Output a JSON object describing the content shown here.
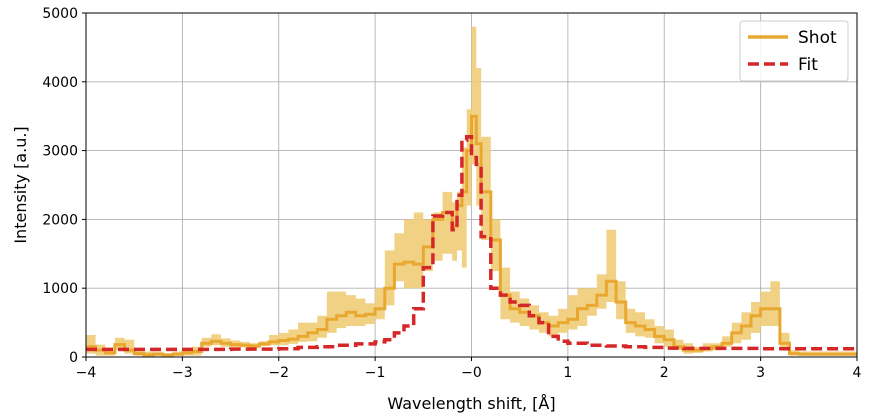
{
  "chart_data": {
    "type": "line",
    "title": "",
    "xlabel": "Wavelength shift, [Å]",
    "ylabel": "Intensity [a.u.]",
    "xlim": [
      -4,
      4
    ],
    "ylim": [
      0,
      5000
    ],
    "xticks": [
      -4,
      -3,
      -2,
      -1,
      0,
      1,
      2,
      3,
      4
    ],
    "xtick_labels": [
      "−4",
      "−3",
      "−2",
      "−1",
      "−0",
      "1",
      "2",
      "3",
      "4"
    ],
    "yticks": [
      0,
      1000,
      2000,
      3000,
      4000,
      5000
    ],
    "ytick_labels": [
      "0",
      "1000",
      "2000",
      "3000",
      "4000",
      "5000"
    ],
    "grid": true,
    "legend_position": "top-right",
    "series": [
      {
        "name": "Shot",
        "color": "#e8a830",
        "style": "solid step",
        "band_color": "#efcd78",
        "x": [
          -4.0,
          -3.9,
          -3.8,
          -3.7,
          -3.6,
          -3.5,
          -3.4,
          -3.3,
          -3.2,
          -3.1,
          -3.0,
          -2.9,
          -2.8,
          -2.7,
          -2.6,
          -2.5,
          -2.4,
          -2.3,
          -2.2,
          -2.1,
          -2.0,
          -1.9,
          -1.8,
          -1.7,
          -1.6,
          -1.5,
          -1.4,
          -1.3,
          -1.2,
          -1.1,
          -1.0,
          -0.9,
          -0.8,
          -0.7,
          -0.6,
          -0.5,
          -0.4,
          -0.3,
          -0.2,
          -0.15,
          -0.1,
          -0.05,
          0.0,
          0.05,
          0.1,
          0.2,
          0.3,
          0.4,
          0.5,
          0.6,
          0.7,
          0.8,
          0.9,
          1.0,
          1.1,
          1.2,
          1.3,
          1.4,
          1.5,
          1.6,
          1.7,
          1.8,
          1.9,
          2.0,
          2.1,
          2.2,
          2.3,
          2.4,
          2.5,
          2.6,
          2.7,
          2.8,
          2.9,
          3.0,
          3.1,
          3.2,
          3.3,
          3.4,
          3.5,
          3.6,
          3.7,
          3.8,
          3.9,
          4.0
        ],
        "y": [
          150,
          100,
          60,
          180,
          100,
          50,
          30,
          40,
          30,
          40,
          60,
          80,
          200,
          230,
          200,
          180,
          170,
          160,
          190,
          220,
          240,
          260,
          300,
          350,
          400,
          550,
          600,
          650,
          600,
          620,
          700,
          1000,
          1350,
          1380,
          1350,
          1600,
          2000,
          2100,
          1900,
          2200,
          2400,
          3000,
          3500,
          3100,
          2400,
          1700,
          900,
          700,
          650,
          600,
          500,
          450,
          500,
          550,
          700,
          750,
          900,
          1100,
          800,
          500,
          450,
          400,
          300,
          250,
          150,
          100,
          100,
          120,
          150,
          200,
          350,
          450,
          600,
          700,
          700,
          200,
          50,
          40,
          40,
          40,
          40,
          40,
          40,
          40
        ],
        "y_low": [
          50,
          20,
          20,
          100,
          50,
          20,
          20,
          20,
          20,
          20,
          20,
          20,
          150,
          170,
          150,
          140,
          140,
          130,
          160,
          170,
          170,
          190,
          220,
          230,
          280,
          350,
          420,
          450,
          450,
          480,
          550,
          750,
          1100,
          1000,
          1000,
          1250,
          1400,
          1500,
          1400,
          1550,
          1300,
          2200,
          2800,
          2200,
          1700,
          1250,
          550,
          500,
          450,
          400,
          350,
          300,
          350,
          400,
          450,
          600,
          700,
          800,
          550,
          350,
          300,
          280,
          200,
          150,
          100,
          50,
          60,
          80,
          100,
          150,
          200,
          250,
          350,
          450,
          450,
          100,
          20,
          20,
          20,
          20,
          20,
          20,
          20,
          20
        ],
        "y_high": [
          320,
          180,
          100,
          280,
          250,
          100,
          80,
          80,
          50,
          80,
          100,
          150,
          280,
          330,
          270,
          240,
          220,
          200,
          230,
          320,
          350,
          400,
          500,
          500,
          600,
          950,
          950,
          900,
          850,
          780,
          1000,
          1550,
          1800,
          2000,
          2100,
          2000,
          2100,
          2400,
          2250,
          2400,
          3050,
          3600,
          4800,
          4200,
          3200,
          2000,
          1300,
          950,
          850,
          750,
          650,
          600,
          700,
          900,
          1000,
          1000,
          1200,
          1850,
          1100,
          700,
          650,
          550,
          450,
          400,
          250,
          200,
          150,
          200,
          200,
          300,
          500,
          650,
          800,
          950,
          1100,
          350,
          100,
          80,
          80,
          80,
          80,
          80,
          80,
          80
        ]
      },
      {
        "name": "Fit",
        "color": "#d62728",
        "style": "dashed step",
        "x": [
          -4.0,
          -3.5,
          -3.0,
          -2.5,
          -2.0,
          -1.8,
          -1.6,
          -1.4,
          -1.2,
          -1.0,
          -0.9,
          -0.8,
          -0.7,
          -0.6,
          -0.5,
          -0.4,
          -0.3,
          -0.2,
          -0.15,
          -0.1,
          -0.05,
          0.0,
          0.05,
          0.1,
          0.2,
          0.3,
          0.4,
          0.5,
          0.6,
          0.7,
          0.8,
          0.9,
          1.0,
          1.2,
          1.4,
          1.6,
          1.8,
          2.0,
          2.2,
          2.5,
          3.0,
          3.5,
          4.0
        ],
        "y": [
          110,
          110,
          110,
          115,
          120,
          140,
          150,
          170,
          190,
          220,
          250,
          350,
          450,
          700,
          1300,
          2050,
          2100,
          1850,
          2350,
          3150,
          3200,
          2900,
          2800,
          1750,
          1000,
          900,
          800,
          750,
          600,
          500,
          300,
          230,
          200,
          170,
          160,
          150,
          140,
          130,
          125,
          125,
          120,
          120,
          110
        ]
      }
    ]
  }
}
